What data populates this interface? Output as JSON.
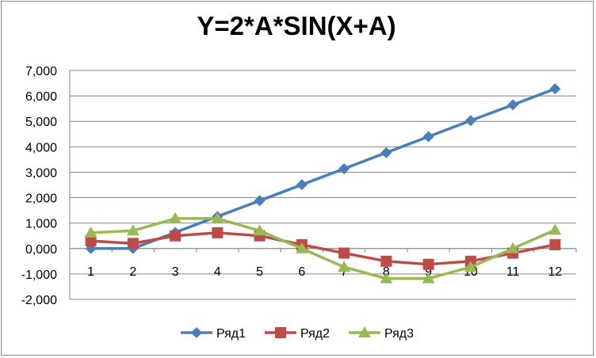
{
  "chart_data": {
    "type": "line",
    "title": "Y=2*A*SIN(X+A)",
    "xlabel": "",
    "ylabel": "",
    "categories": [
      "1",
      "2",
      "3",
      "4",
      "5",
      "6",
      "7",
      "8",
      "9",
      "10",
      "11",
      "12"
    ],
    "ylim": [
      -2,
      7
    ],
    "yticks": [
      7,
      6,
      5,
      4,
      3,
      2,
      1,
      0,
      -1,
      -2
    ],
    "ytick_labels": [
      "7,000",
      "6,000",
      "5,000",
      "4,000",
      "3,000",
      "2,000",
      "1,000",
      "0,000",
      "-1,000",
      "-2,000"
    ],
    "grid": true,
    "legend_position": "bottom",
    "series": [
      {
        "name": "Ряд1",
        "color": "#4a7ebb",
        "marker": "diamond",
        "values": [
          0.0,
          0.0,
          0.63,
          1.26,
          1.88,
          2.51,
          3.14,
          3.77,
          4.4,
          5.03,
          5.65,
          6.28
        ]
      },
      {
        "name": "Ряд2",
        "color": "#be4b48",
        "marker": "square",
        "values": [
          0.3,
          0.2,
          0.5,
          0.62,
          0.5,
          0.15,
          -0.18,
          -0.5,
          -0.62,
          -0.5,
          -0.18,
          0.15
        ]
      },
      {
        "name": "Ряд3",
        "color": "#98b954",
        "marker": "triangle",
        "values": [
          0.62,
          0.7,
          1.18,
          1.18,
          0.7,
          0.0,
          -0.73,
          -1.18,
          -1.18,
          -0.73,
          0.0,
          0.73
        ]
      }
    ]
  }
}
